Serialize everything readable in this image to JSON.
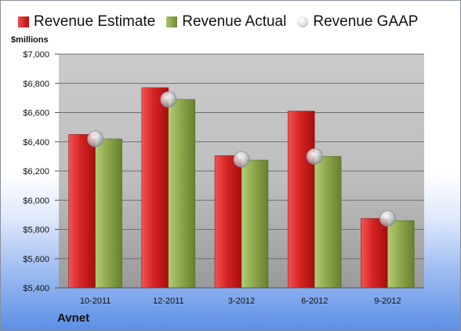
{
  "legend": [
    {
      "label": "Revenue Estimate",
      "icon": "bar-red"
    },
    {
      "label": "Revenue Actual",
      "icon": "bar-green"
    },
    {
      "label": "Revenue GAAP",
      "icon": "circle-gray"
    }
  ],
  "units_label": "$millions",
  "company_label": "Avnet",
  "colors": {
    "estimate": "#d42424",
    "actual": "#8fa84b",
    "gaap": "#c9cbd1",
    "plot_bg_top": "#c8c8c8",
    "plot_bg_bottom": "#9e9e9e"
  },
  "chart_data": {
    "type": "bar",
    "categories": [
      "10-2011",
      "12-2011",
      "3-2012",
      "6-2012",
      "9-2012"
    ],
    "series": [
      {
        "name": "Revenue Estimate",
        "values": [
          6450,
          6770,
          6305,
          6610,
          5875
        ]
      },
      {
        "name": "Revenue Actual",
        "values": [
          6420,
          6690,
          6275,
          6300,
          5860
        ]
      },
      {
        "name": "Revenue GAAP",
        "values": [
          6420,
          6690,
          6280,
          6300,
          5875
        ]
      }
    ],
    "ylim": [
      5400,
      7000
    ],
    "yticks": [
      "$5,400",
      "$5,600",
      "$5,800",
      "$6,000",
      "$6,200",
      "$6,400",
      "$6,600",
      "$6,800",
      "$7,000"
    ],
    "ytick_values": [
      5400,
      5600,
      5800,
      6000,
      6200,
      6400,
      6600,
      6800,
      7000
    ],
    "grid": true,
    "legend_position": "top"
  }
}
